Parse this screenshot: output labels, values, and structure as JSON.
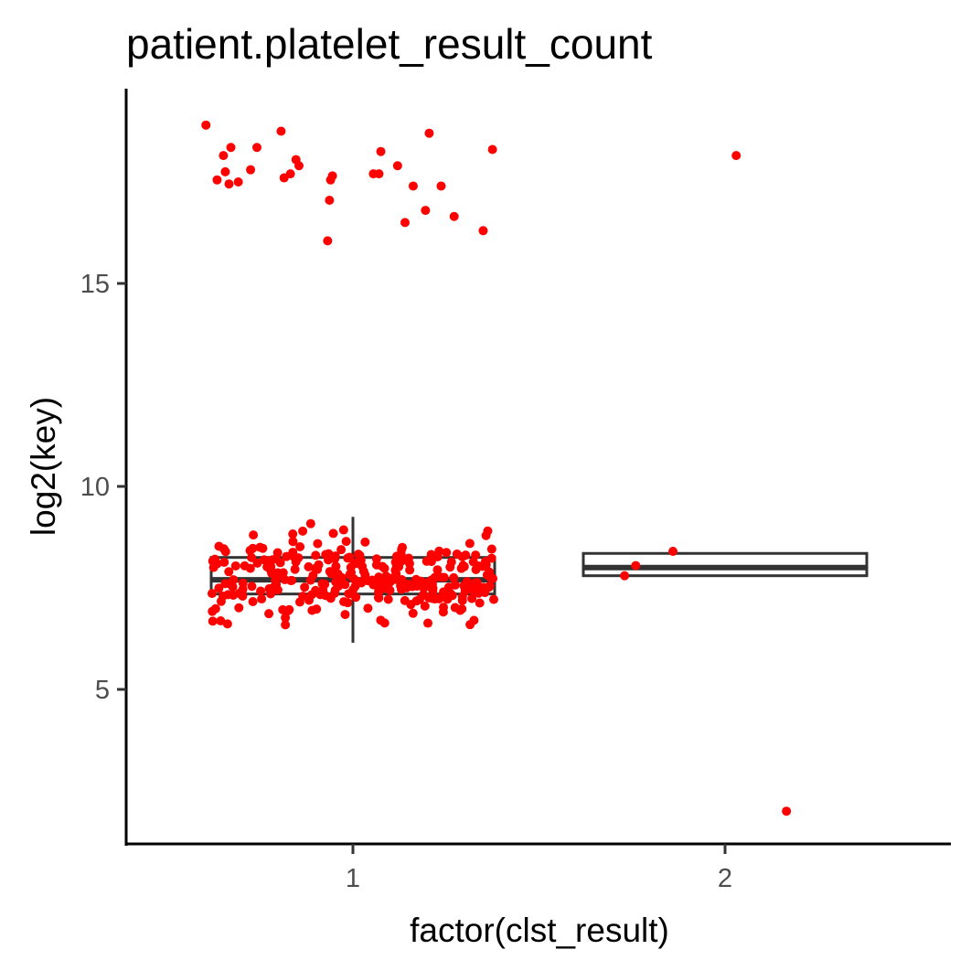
{
  "chart_data": {
    "type": "box",
    "title": "patient.platelet_result_count",
    "xlabel": "factor(clst_result)",
    "ylabel": "log2(key)",
    "categories": [
      "1",
      "2"
    ],
    "ylim": [
      1.2,
      20.0
    ],
    "yticks": [
      5,
      10,
      15
    ],
    "grid": false,
    "point_color": "#ff0000",
    "box_stroke_color": "#333333",
    "boxes": [
      {
        "category": "1",
        "q1": 7.35,
        "median": 7.7,
        "q3": 8.25,
        "whisker_low": 6.15,
        "whisker_high": 9.25
      },
      {
        "category": "2",
        "q1": 7.8,
        "median": 8.0,
        "q3": 8.35,
        "whisker_low": 7.8,
        "whisker_high": 8.35
      }
    ],
    "points": [
      {
        "x": 0.605,
        "y": 18.9
      },
      {
        "x": 0.635,
        "y": 17.55
      },
      {
        "x": 0.652,
        "y": 18.15
      },
      {
        "x": 0.657,
        "y": 17.75
      },
      {
        "x": 0.667,
        "y": 17.45
      },
      {
        "x": 0.672,
        "y": 18.35
      },
      {
        "x": 0.692,
        "y": 17.5
      },
      {
        "x": 0.725,
        "y": 17.8
      },
      {
        "x": 0.742,
        "y": 18.35
      },
      {
        "x": 0.807,
        "y": 18.75
      },
      {
        "x": 0.815,
        "y": 17.6
      },
      {
        "x": 0.832,
        "y": 17.7
      },
      {
        "x": 0.847,
        "y": 18.05
      },
      {
        "x": 0.855,
        "y": 17.9
      },
      {
        "x": 0.932,
        "y": 16.05
      },
      {
        "x": 0.937,
        "y": 17.05
      },
      {
        "x": 0.94,
        "y": 17.55
      },
      {
        "x": 0.945,
        "y": 17.65
      },
      {
        "x": 1.055,
        "y": 17.7
      },
      {
        "x": 1.07,
        "y": 17.7
      },
      {
        "x": 1.075,
        "y": 18.25
      },
      {
        "x": 1.12,
        "y": 17.9
      },
      {
        "x": 1.14,
        "y": 16.5
      },
      {
        "x": 1.162,
        "y": 17.4
      },
      {
        "x": 1.195,
        "y": 16.8
      },
      {
        "x": 1.205,
        "y": 18.7
      },
      {
        "x": 1.237,
        "y": 17.4
      },
      {
        "x": 1.272,
        "y": 16.65
      },
      {
        "x": 1.35,
        "y": 16.3
      },
      {
        "x": 1.375,
        "y": 18.3
      },
      {
        "x": 1.73,
        "y": 7.8
      },
      {
        "x": 1.76,
        "y": 8.05
      },
      {
        "x": 1.86,
        "y": 8.4
      },
      {
        "x": 2.03,
        "y": 18.15
      },
      {
        "x": 2.165,
        "y": 2.0
      }
    ],
    "cluster": {
      "category": "1",
      "count": 300,
      "y_low": 6.15,
      "y_high": 9.25,
      "center": 7.75
    }
  }
}
